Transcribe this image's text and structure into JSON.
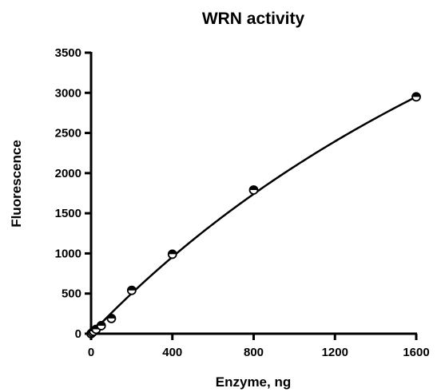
{
  "chart_data": {
    "type": "scatter",
    "title": "WRN activity",
    "xlabel": "Enzyme, ng",
    "ylabel": "Fluorescence",
    "xlim": [
      0,
      1600
    ],
    "ylim": [
      0,
      3500
    ],
    "xticks": [
      0,
      400,
      800,
      1200,
      1600
    ],
    "yticks": [
      0,
      500,
      1000,
      1500,
      2000,
      2500,
      3000,
      3500
    ],
    "grid": false,
    "points": [
      {
        "x": 0,
        "y": 0
      },
      {
        "x": 6.25,
        "y": 15
      },
      {
        "x": 12.5,
        "y": 30
      },
      {
        "x": 25,
        "y": 55
      },
      {
        "x": 50,
        "y": 100
      },
      {
        "x": 100,
        "y": 190
      },
      {
        "x": 200,
        "y": 540
      },
      {
        "x": 400,
        "y": 990
      },
      {
        "x": 800,
        "y": 1790
      },
      {
        "x": 1600,
        "y": 2950
      }
    ],
    "fit_curve": {
      "type": "saturation",
      "ymax": 9700,
      "k": 3660
    },
    "colors": {
      "marker_fill": "#ffffff",
      "marker_half": "#000000",
      "line": "#000000"
    }
  }
}
